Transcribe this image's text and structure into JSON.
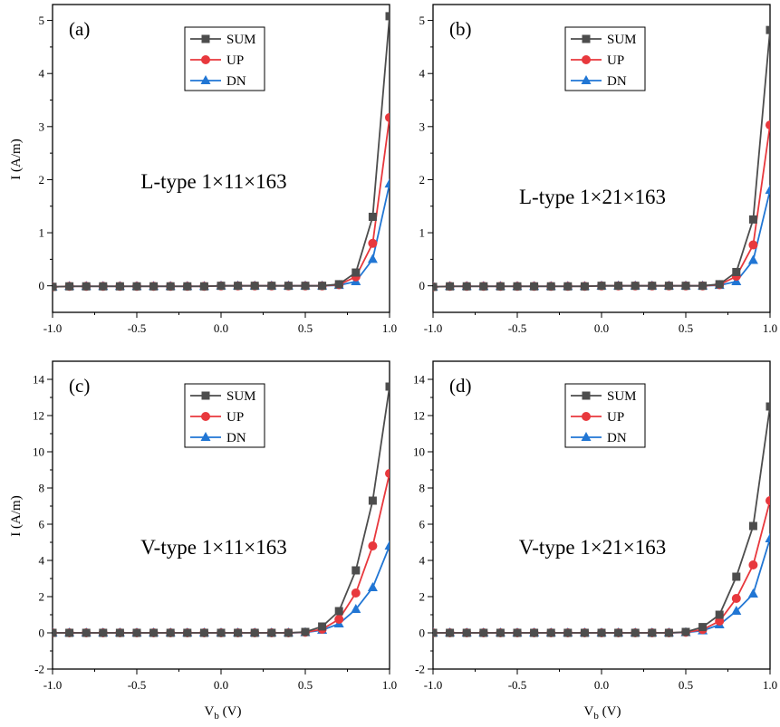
{
  "figure": {
    "ylabel": "I (A/m)",
    "xlabel_main": "V",
    "xlabel_sub": "b",
    "xlabel_unit": " (V)"
  },
  "colors": {
    "SUM": "#4d4d4d",
    "UP": "#e8383d",
    "DN": "#2176d4"
  },
  "chart_data": [
    {
      "type": "line",
      "panel_label": "(a)",
      "annotation": "L-type 1×11×163",
      "x": [
        -1.0,
        -0.9,
        -0.8,
        -0.7,
        -0.6,
        -0.5,
        -0.4,
        -0.3,
        -0.2,
        -0.1,
        0.0,
        0.1,
        0.2,
        0.3,
        0.4,
        0.5,
        0.6,
        0.7,
        0.8,
        0.9,
        1.0
      ],
      "series": [
        {
          "name": "SUM",
          "marker": "square",
          "values": [
            -0.02,
            -0.01,
            -0.01,
            -0.01,
            -0.01,
            -0.01,
            -0.01,
            -0.01,
            -0.01,
            -0.01,
            0.0,
            0.0,
            0.0,
            0.0,
            0.0,
            0.0,
            0.0,
            0.03,
            0.25,
            1.3,
            5.08
          ]
        },
        {
          "name": "UP",
          "marker": "circle",
          "values": [
            -0.02,
            -0.01,
            -0.01,
            -0.01,
            -0.01,
            -0.01,
            -0.01,
            -0.01,
            -0.01,
            -0.01,
            0.0,
            0.0,
            0.0,
            0.0,
            0.0,
            0.0,
            0.0,
            0.02,
            0.17,
            0.8,
            3.17
          ]
        },
        {
          "name": "DN",
          "marker": "triangle",
          "values": [
            -0.02,
            -0.01,
            -0.01,
            -0.01,
            -0.01,
            -0.01,
            -0.01,
            -0.01,
            -0.01,
            -0.01,
            0.0,
            0.0,
            0.0,
            0.0,
            0.0,
            0.0,
            0.0,
            0.01,
            0.08,
            0.5,
            1.92
          ]
        }
      ],
      "xlim": [
        -1.0,
        1.0
      ],
      "ylim": [
        -0.5,
        5.3
      ],
      "xticks": [
        "-1.0",
        "-0.5",
        "0.0",
        "0.5",
        "1.0"
      ],
      "yticks": [
        "0",
        "1",
        "2",
        "3",
        "4",
        "5"
      ],
      "ylabel": "I (A/m)",
      "xlabel": "",
      "legend": "top-center"
    },
    {
      "type": "line",
      "panel_label": "(b)",
      "annotation": "L-type 1×21×163",
      "x": [
        -1.0,
        -0.9,
        -0.8,
        -0.7,
        -0.6,
        -0.5,
        -0.4,
        -0.3,
        -0.2,
        -0.1,
        0.0,
        0.1,
        0.2,
        0.3,
        0.4,
        0.5,
        0.6,
        0.7,
        0.8,
        0.9,
        1.0
      ],
      "series": [
        {
          "name": "SUM",
          "marker": "square",
          "values": [
            -0.02,
            -0.01,
            -0.01,
            -0.01,
            -0.01,
            -0.01,
            -0.01,
            -0.01,
            -0.01,
            -0.01,
            0.0,
            0.0,
            0.0,
            0.0,
            0.0,
            0.0,
            0.0,
            0.03,
            0.26,
            1.25,
            4.82
          ]
        },
        {
          "name": "UP",
          "marker": "circle",
          "values": [
            -0.02,
            -0.01,
            -0.01,
            -0.01,
            -0.01,
            -0.01,
            -0.01,
            -0.01,
            -0.01,
            -0.01,
            0.0,
            0.0,
            0.0,
            0.0,
            0.0,
            0.0,
            0.0,
            0.02,
            0.18,
            0.77,
            3.03
          ]
        },
        {
          "name": "DN",
          "marker": "triangle",
          "values": [
            -0.02,
            -0.01,
            -0.01,
            -0.01,
            -0.01,
            -0.01,
            -0.01,
            -0.01,
            -0.01,
            -0.01,
            0.0,
            0.0,
            0.0,
            0.0,
            0.0,
            0.0,
            0.0,
            0.01,
            0.08,
            0.48,
            1.8
          ]
        }
      ],
      "xlim": [
        -1.0,
        1.0
      ],
      "ylim": [
        -0.5,
        5.3
      ],
      "xticks": [
        "-1.0",
        "-0.5",
        "0.0",
        "0.5",
        "1.0"
      ],
      "yticks": [
        "0",
        "1",
        "2",
        "3",
        "4",
        "5"
      ],
      "ylabel": "",
      "xlabel": "",
      "legend": "top-center"
    },
    {
      "type": "line",
      "panel_label": "(c)",
      "annotation": "V-type 1×11×163",
      "x": [
        -1.0,
        -0.9,
        -0.8,
        -0.7,
        -0.6,
        -0.5,
        -0.4,
        -0.3,
        -0.2,
        -0.1,
        0.0,
        0.1,
        0.2,
        0.3,
        0.4,
        0.5,
        0.6,
        0.7,
        0.8,
        0.9,
        1.0
      ],
      "series": [
        {
          "name": "SUM",
          "marker": "square",
          "values": [
            0.0,
            0.0,
            0.0,
            0.0,
            0.0,
            0.0,
            0.0,
            0.0,
            0.0,
            0.0,
            0.0,
            0.0,
            0.0,
            0.0,
            0.0,
            0.05,
            0.35,
            1.2,
            3.45,
            7.3,
            13.6
          ]
        },
        {
          "name": "UP",
          "marker": "circle",
          "values": [
            0.0,
            0.0,
            0.0,
            0.0,
            0.0,
            0.0,
            0.0,
            0.0,
            0.0,
            0.0,
            0.0,
            0.0,
            0.0,
            0.0,
            0.0,
            0.03,
            0.2,
            0.75,
            2.2,
            4.8,
            8.8
          ]
        },
        {
          "name": "DN",
          "marker": "triangle",
          "values": [
            0.0,
            0.0,
            0.0,
            0.0,
            0.0,
            0.0,
            0.0,
            0.0,
            0.0,
            0.0,
            0.0,
            0.0,
            0.0,
            0.0,
            0.0,
            0.02,
            0.15,
            0.5,
            1.3,
            2.5,
            4.8
          ]
        }
      ],
      "xlim": [
        -1.0,
        1.0
      ],
      "ylim": [
        -2,
        15
      ],
      "xticks": [
        "-1.0",
        "-0.5",
        "0.0",
        "0.5",
        "1.0"
      ],
      "yticks": [
        "-2",
        "0",
        "2",
        "4",
        "6",
        "8",
        "10",
        "12",
        "14"
      ],
      "ylabel": "I (A/m)",
      "xlabel": "Vb (V)",
      "legend": "top-center"
    },
    {
      "type": "line",
      "panel_label": "(d)",
      "annotation": "V-type 1×21×163",
      "x": [
        -1.0,
        -0.9,
        -0.8,
        -0.7,
        -0.6,
        -0.5,
        -0.4,
        -0.3,
        -0.2,
        -0.1,
        0.0,
        0.1,
        0.2,
        0.3,
        0.4,
        0.5,
        0.6,
        0.7,
        0.8,
        0.9,
        1.0
      ],
      "series": [
        {
          "name": "SUM",
          "marker": "square",
          "values": [
            0.0,
            0.0,
            0.0,
            0.0,
            0.0,
            0.0,
            0.0,
            0.0,
            0.0,
            0.0,
            0.0,
            0.0,
            0.0,
            0.0,
            0.0,
            0.05,
            0.32,
            1.0,
            3.1,
            5.9,
            12.5
          ]
        },
        {
          "name": "UP",
          "marker": "circle",
          "values": [
            0.0,
            0.0,
            0.0,
            0.0,
            0.0,
            0.0,
            0.0,
            0.0,
            0.0,
            0.0,
            0.0,
            0.0,
            0.0,
            0.0,
            0.0,
            0.03,
            0.18,
            0.65,
            1.9,
            3.75,
            7.3
          ]
        },
        {
          "name": "DN",
          "marker": "triangle",
          "values": [
            0.0,
            0.0,
            0.0,
            0.0,
            0.0,
            0.0,
            0.0,
            0.0,
            0.0,
            0.0,
            0.0,
            0.0,
            0.0,
            0.0,
            0.0,
            0.02,
            0.12,
            0.45,
            1.2,
            2.15,
            5.2
          ]
        }
      ],
      "xlim": [
        -1.0,
        1.0
      ],
      "ylim": [
        -2,
        15
      ],
      "xticks": [
        "-1.0",
        "-0.5",
        "0.0",
        "0.5",
        "1.0"
      ],
      "yticks": [
        "-2",
        "0",
        "2",
        "4",
        "6",
        "8",
        "10",
        "12",
        "14"
      ],
      "ylabel": "",
      "xlabel": "Vb (V)",
      "legend": "top-center"
    }
  ]
}
